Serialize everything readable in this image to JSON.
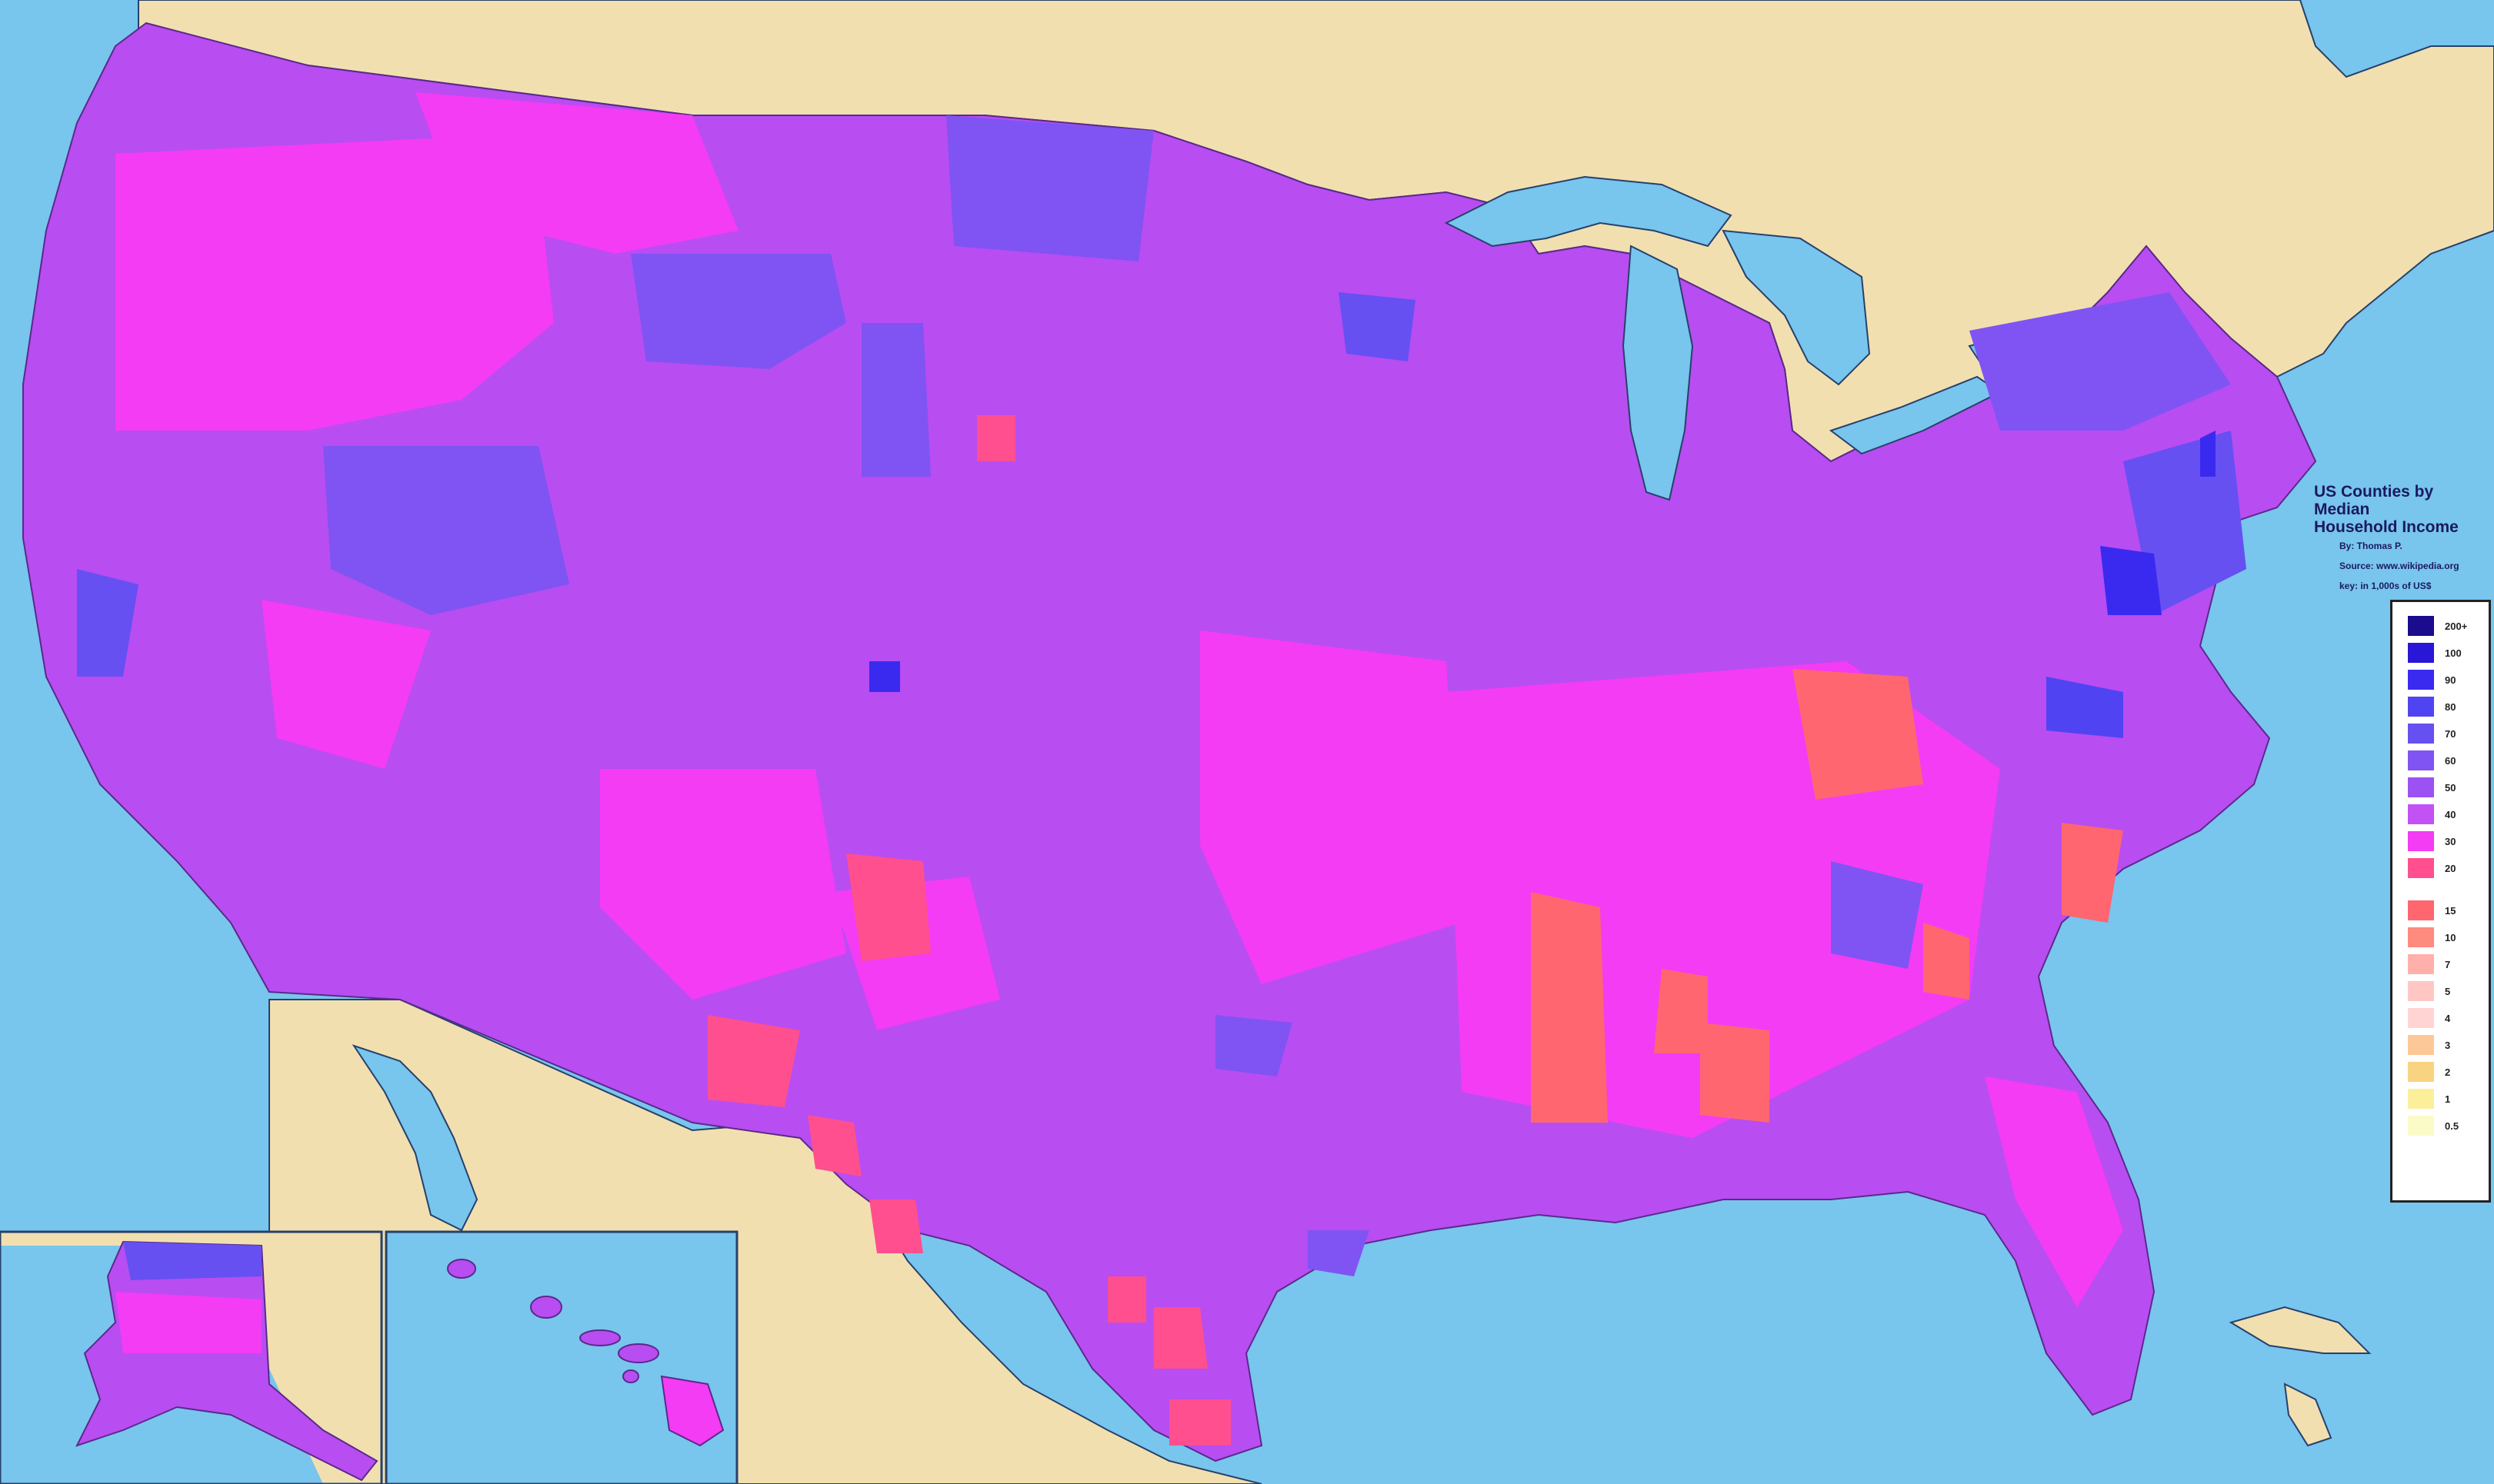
{
  "title_lines": [
    "US Counties by Median",
    "Household Income"
  ],
  "byline": "By: Thomas P.",
  "source": "Source: www.wikipedia.org",
  "key_note": "key: in 1,000s of US$",
  "legend": [
    {
      "label": "200+",
      "color": "#1a0c8c"
    },
    {
      "label": "100",
      "color": "#2a16d6"
    },
    {
      "label": "90",
      "color": "#3a2af0"
    },
    {
      "label": "80",
      "color": "#5044f2"
    },
    {
      "label": "70",
      "color": "#6650f2"
    },
    {
      "label": "60",
      "color": "#8054f2"
    },
    {
      "label": "50",
      "color": "#9c52f2"
    },
    {
      "label": "40",
      "color": "#c252f4"
    },
    {
      "label": "30",
      "color": "#f43cf4"
    },
    {
      "label": "20",
      "color": "#ff4f8e"
    },
    {
      "label": "15",
      "color": "#ff6670"
    },
    {
      "label": "10",
      "color": "#ff8a7e"
    },
    {
      "label": "7",
      "color": "#ffb0aa"
    },
    {
      "label": "5",
      "color": "#ffc6c4"
    },
    {
      "label": "4",
      "color": "#ffd4d2"
    },
    {
      "label": "3",
      "color": "#fcc898"
    },
    {
      "label": "2",
      "color": "#f8d482"
    },
    {
      "label": "1",
      "color": "#fbef9a"
    },
    {
      "label": "0.5",
      "color": "#fbfbc8"
    }
  ],
  "colors": {
    "water": "#78c5ee",
    "land": "#f2dfb0",
    "base_county": "#b84df2",
    "border": "#26416b"
  }
}
